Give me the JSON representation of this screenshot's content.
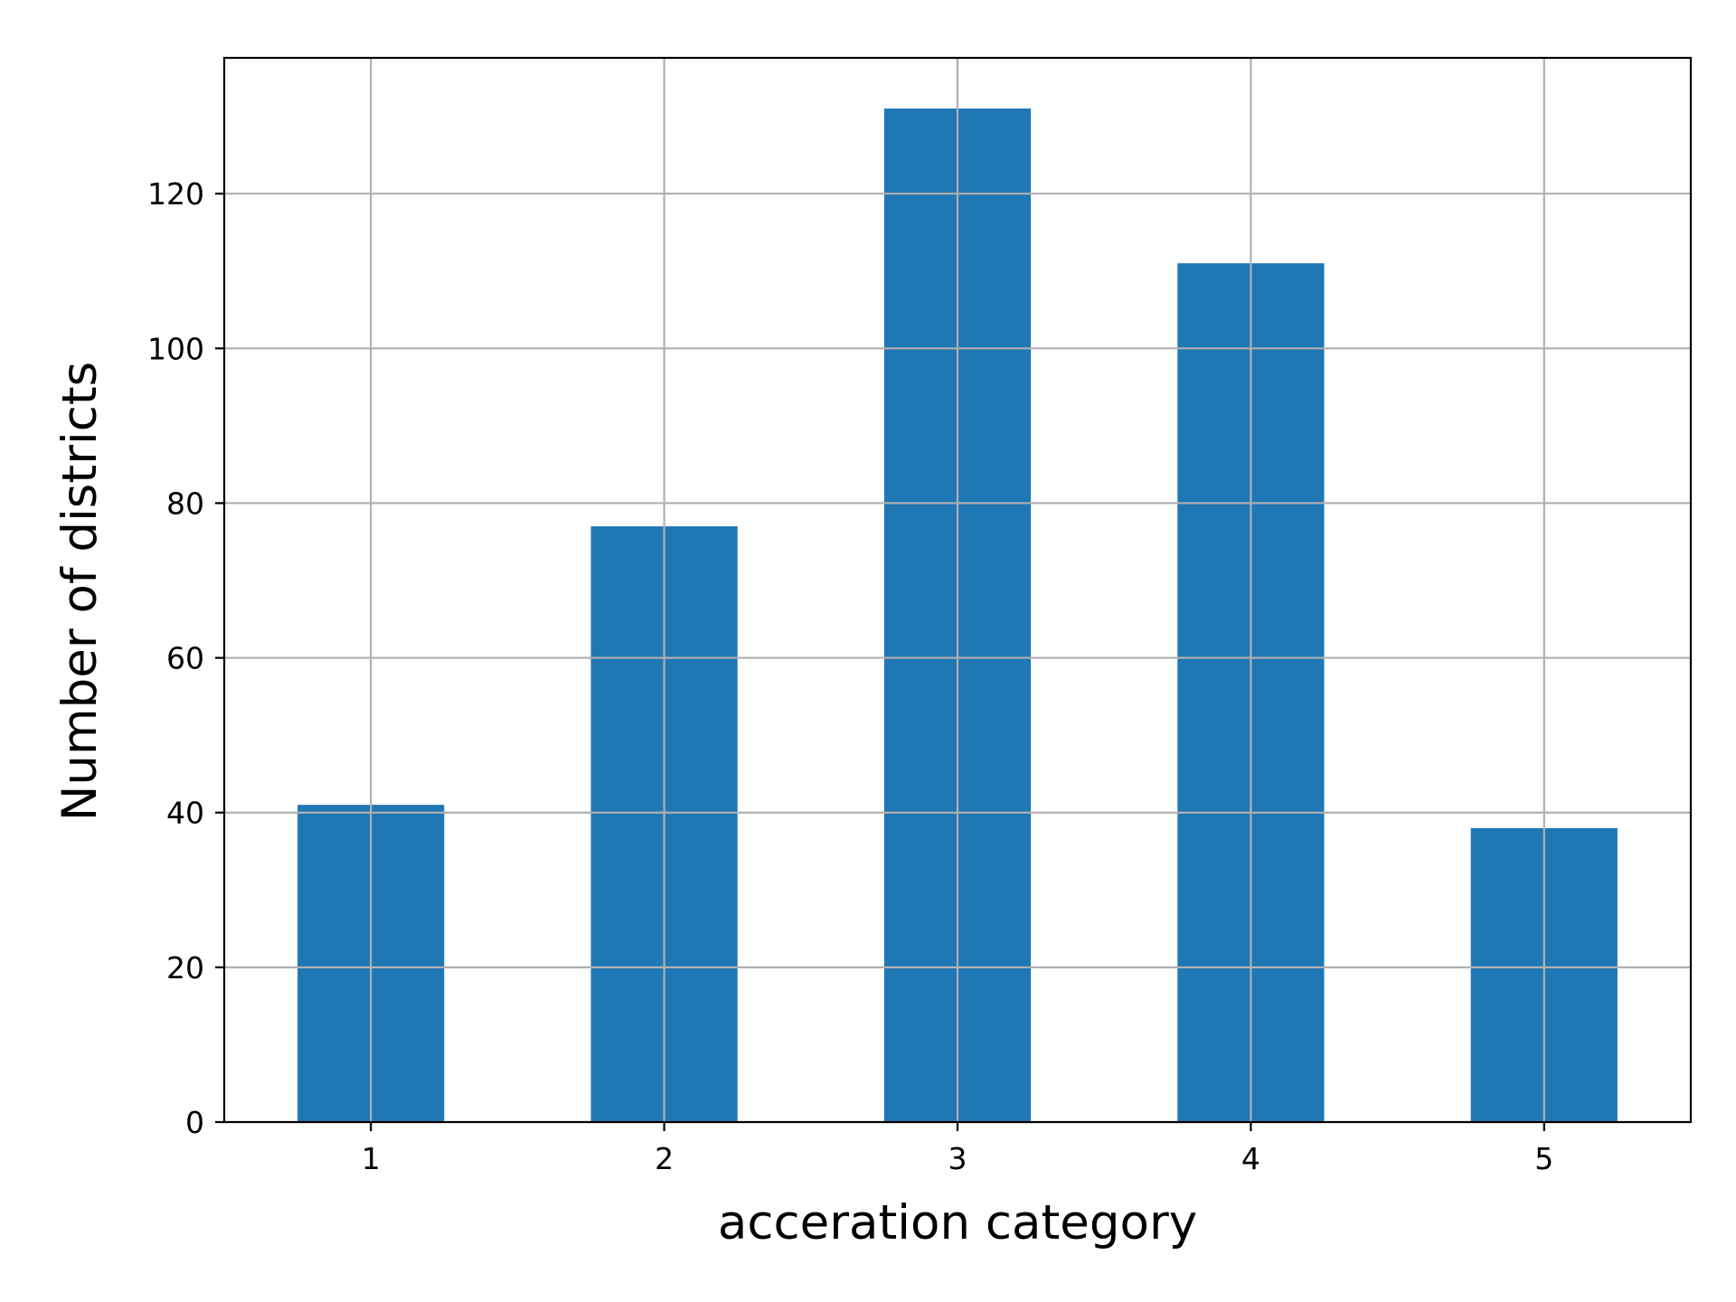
{
  "chart_data": {
    "type": "bar",
    "title": "",
    "xlabel": "acceration category",
    "ylabel": "Number of districts",
    "categories": [
      "1",
      "2",
      "3",
      "4",
      "5"
    ],
    "values": [
      41,
      77,
      131,
      111,
      38
    ],
    "ylim": [
      0,
      137.55
    ],
    "xlim": [
      0.5,
      5.5
    ],
    "yticks": [
      0,
      20,
      40,
      60,
      80,
      100,
      120
    ],
    "ytick_labels": [
      "0",
      "20",
      "40",
      "60",
      "80",
      "100",
      "120"
    ],
    "grid": true,
    "legend": "none",
    "bar_color": "#1f77b4",
    "grid_color": "#b0b0b0",
    "axis_color": "#000000"
  }
}
